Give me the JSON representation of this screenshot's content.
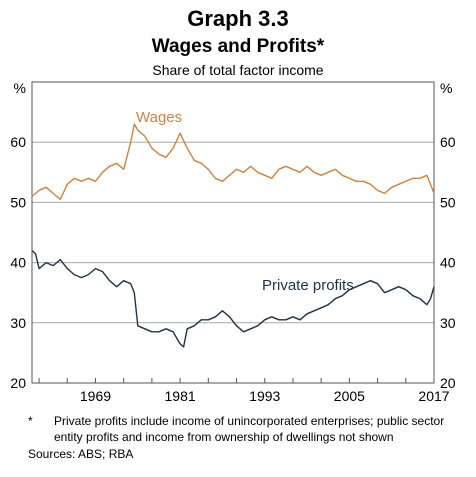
{
  "header": {
    "title": "Graph 3.3",
    "subtitle": "Wages and Profits*",
    "caption": "Share of total factor income"
  },
  "footer": {
    "footnote_mark": "*",
    "footnote": "Private profits include income of unincorporated enterprises; public sector entity profits and income from ownership of dwellings not shown",
    "sources": "Sources: ABS; RBA"
  },
  "colors": {
    "wages": "#d0823f",
    "profits": "#1f3347",
    "grid": "#a9a9a9",
    "frame": "#555555"
  },
  "chart_data": {
    "type": "line",
    "y_unit_left": "%",
    "y_unit_right": "%",
    "ylim": [
      20,
      70
    ],
    "yticks": [
      20,
      30,
      40,
      50,
      60
    ],
    "xlim": [
      1960,
      2017
    ],
    "xticks": [
      1969,
      1981,
      1993,
      2005,
      2017
    ],
    "grid": true,
    "series": [
      {
        "name": "Wages",
        "x": [
          1960,
          1961,
          1962,
          1963,
          1964,
          1965,
          1966,
          1967,
          1968,
          1969,
          1970,
          1971,
          1972,
          1973,
          1974,
          1974.5,
          1975,
          1976,
          1977,
          1978,
          1979,
          1980,
          1981,
          1982,
          1983,
          1984,
          1985,
          1986,
          1987,
          1988,
          1989,
          1990,
          1991,
          1992,
          1993,
          1994,
          1995,
          1996,
          1997,
          1998,
          1999,
          2000,
          2001,
          2002,
          2003,
          2004,
          2005,
          2006,
          2007,
          2008,
          2009,
          2010,
          2011,
          2012,
          2013,
          2014,
          2015,
          2016,
          2016.5,
          2017
        ],
        "values": [
          51,
          52,
          52.5,
          51.5,
          50.5,
          53,
          54,
          53.5,
          54,
          53.5,
          55,
          56,
          56.5,
          55.5,
          60,
          63,
          62,
          61,
          59,
          58,
          57.5,
          59,
          61.5,
          59,
          57,
          56.5,
          55.5,
          54,
          53.5,
          54.5,
          55.5,
          55,
          56,
          55,
          54.5,
          54,
          55.5,
          56,
          55.5,
          55,
          56,
          55,
          54.5,
          55,
          55.5,
          54.5,
          54,
          53.5,
          53.5,
          53,
          52,
          51.5,
          52.5,
          53,
          53.5,
          54,
          54,
          54.5,
          53,
          51.5
        ]
      },
      {
        "name": "Private profits",
        "x": [
          1960,
          1960.5,
          1961,
          1962,
          1963,
          1964,
          1965,
          1966,
          1967,
          1968,
          1969,
          1970,
          1971,
          1972,
          1973,
          1974,
          1974.5,
          1975,
          1976,
          1977,
          1978,
          1979,
          1980,
          1981,
          1981.5,
          1982,
          1983,
          1984,
          1985,
          1986,
          1987,
          1988,
          1989,
          1990,
          1991,
          1992,
          1993,
          1994,
          1995,
          1996,
          1997,
          1998,
          1999,
          2000,
          2001,
          2002,
          2003,
          2004,
          2005,
          2006,
          2007,
          2008,
          2009,
          2010,
          2011,
          2012,
          2013,
          2014,
          2015,
          2016,
          2016.5,
          2017
        ],
        "values": [
          42,
          41.5,
          39,
          40,
          39.5,
          40.5,
          39,
          38,
          37.5,
          38,
          39,
          38.5,
          37,
          36,
          37,
          36.5,
          35,
          29.5,
          29,
          28.5,
          28.5,
          29,
          28.5,
          26.5,
          26,
          29,
          29.5,
          30.5,
          30.5,
          31,
          32,
          31,
          29.5,
          28.5,
          29,
          29.5,
          30.5,
          31,
          30.5,
          30.5,
          31,
          30.5,
          31.5,
          32,
          32.5,
          33,
          34,
          34.5,
          35.5,
          36,
          36.5,
          37,
          36.5,
          35,
          35.5,
          36,
          35.5,
          34.5,
          34,
          33,
          34,
          36
        ]
      }
    ],
    "labels": [
      {
        "series": "Wages",
        "text": "Wages"
      },
      {
        "series": "Private profits",
        "text": "Private profits"
      }
    ]
  }
}
